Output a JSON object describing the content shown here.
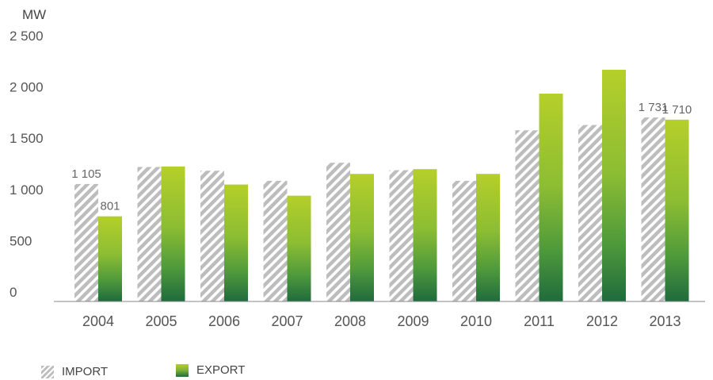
{
  "chart_data": {
    "type": "bar",
    "unit_label": "MW",
    "categories": [
      "2004",
      "2005",
      "2006",
      "2007",
      "2008",
      "2009",
      "2010",
      "2011",
      "2012",
      "2013"
    ],
    "series": [
      {
        "name": "IMPORT",
        "values": [
          1105,
          1265,
          1230,
          1135,
          1305,
          1235,
          1135,
          1610,
          1660,
          1731
        ]
      },
      {
        "name": "EXPORT",
        "values": [
          801,
          1270,
          1100,
          995,
          1200,
          1245,
          1200,
          1955,
          2180,
          1710
        ]
      }
    ],
    "data_labels": [
      {
        "category": "2004",
        "series": "IMPORT",
        "text": "1 105"
      },
      {
        "category": "2004",
        "series": "EXPORT",
        "text": "801"
      },
      {
        "category": "2013",
        "series": "IMPORT",
        "text": "1 731"
      },
      {
        "category": "2013",
        "series": "EXPORT",
        "text": "1 710"
      }
    ],
    "yticks": [
      0,
      500,
      1000,
      1500,
      2000,
      2500
    ],
    "ytick_labels": [
      "0",
      "500",
      "1 000",
      "1 500",
      "2 000",
      "2 500"
    ],
    "ylim": [
      0,
      2500
    ],
    "grid": false,
    "legend_position": "bottom-left",
    "colors": {
      "import": "#bdbdbd",
      "export_top": "#b5cf2a",
      "export_bottom": "#1f6b3d"
    }
  }
}
